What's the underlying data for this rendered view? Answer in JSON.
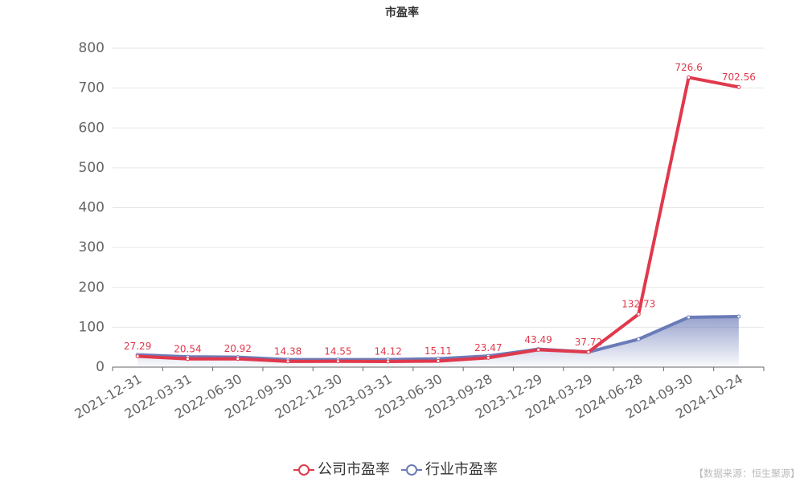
{
  "chart_data": {
    "type": "line",
    "title": "市盈率",
    "categories": [
      "2021-12-31",
      "2022-03-31",
      "2022-06-30",
      "2022-09-30",
      "2022-12-30",
      "2023-03-31",
      "2023-06-30",
      "2023-09-28",
      "2023-12-29",
      "2024-03-29",
      "2024-06-28",
      "2024-09-30",
      "2024-10-24"
    ],
    "series": [
      {
        "name": "公司市盈率",
        "color": "#e0394c",
        "values": [
          27.29,
          20.54,
          20.92,
          14.38,
          14.55,
          14.12,
          15.11,
          23.47,
          43.49,
          37.72,
          132.73,
          726.6,
          702.56
        ]
      },
      {
        "name": "行业市盈率",
        "color": "#6b7bb8",
        "values": [
          31,
          26,
          25,
          19,
          19,
          19,
          21,
          28,
          45,
          38,
          70,
          125,
          127
        ]
      }
    ],
    "ylim": [
      0,
      800
    ],
    "yticks": [
      0,
      100,
      200,
      300,
      400,
      500,
      600,
      700,
      800
    ],
    "grid": true,
    "source": "【数据来源：恒生聚源】"
  }
}
